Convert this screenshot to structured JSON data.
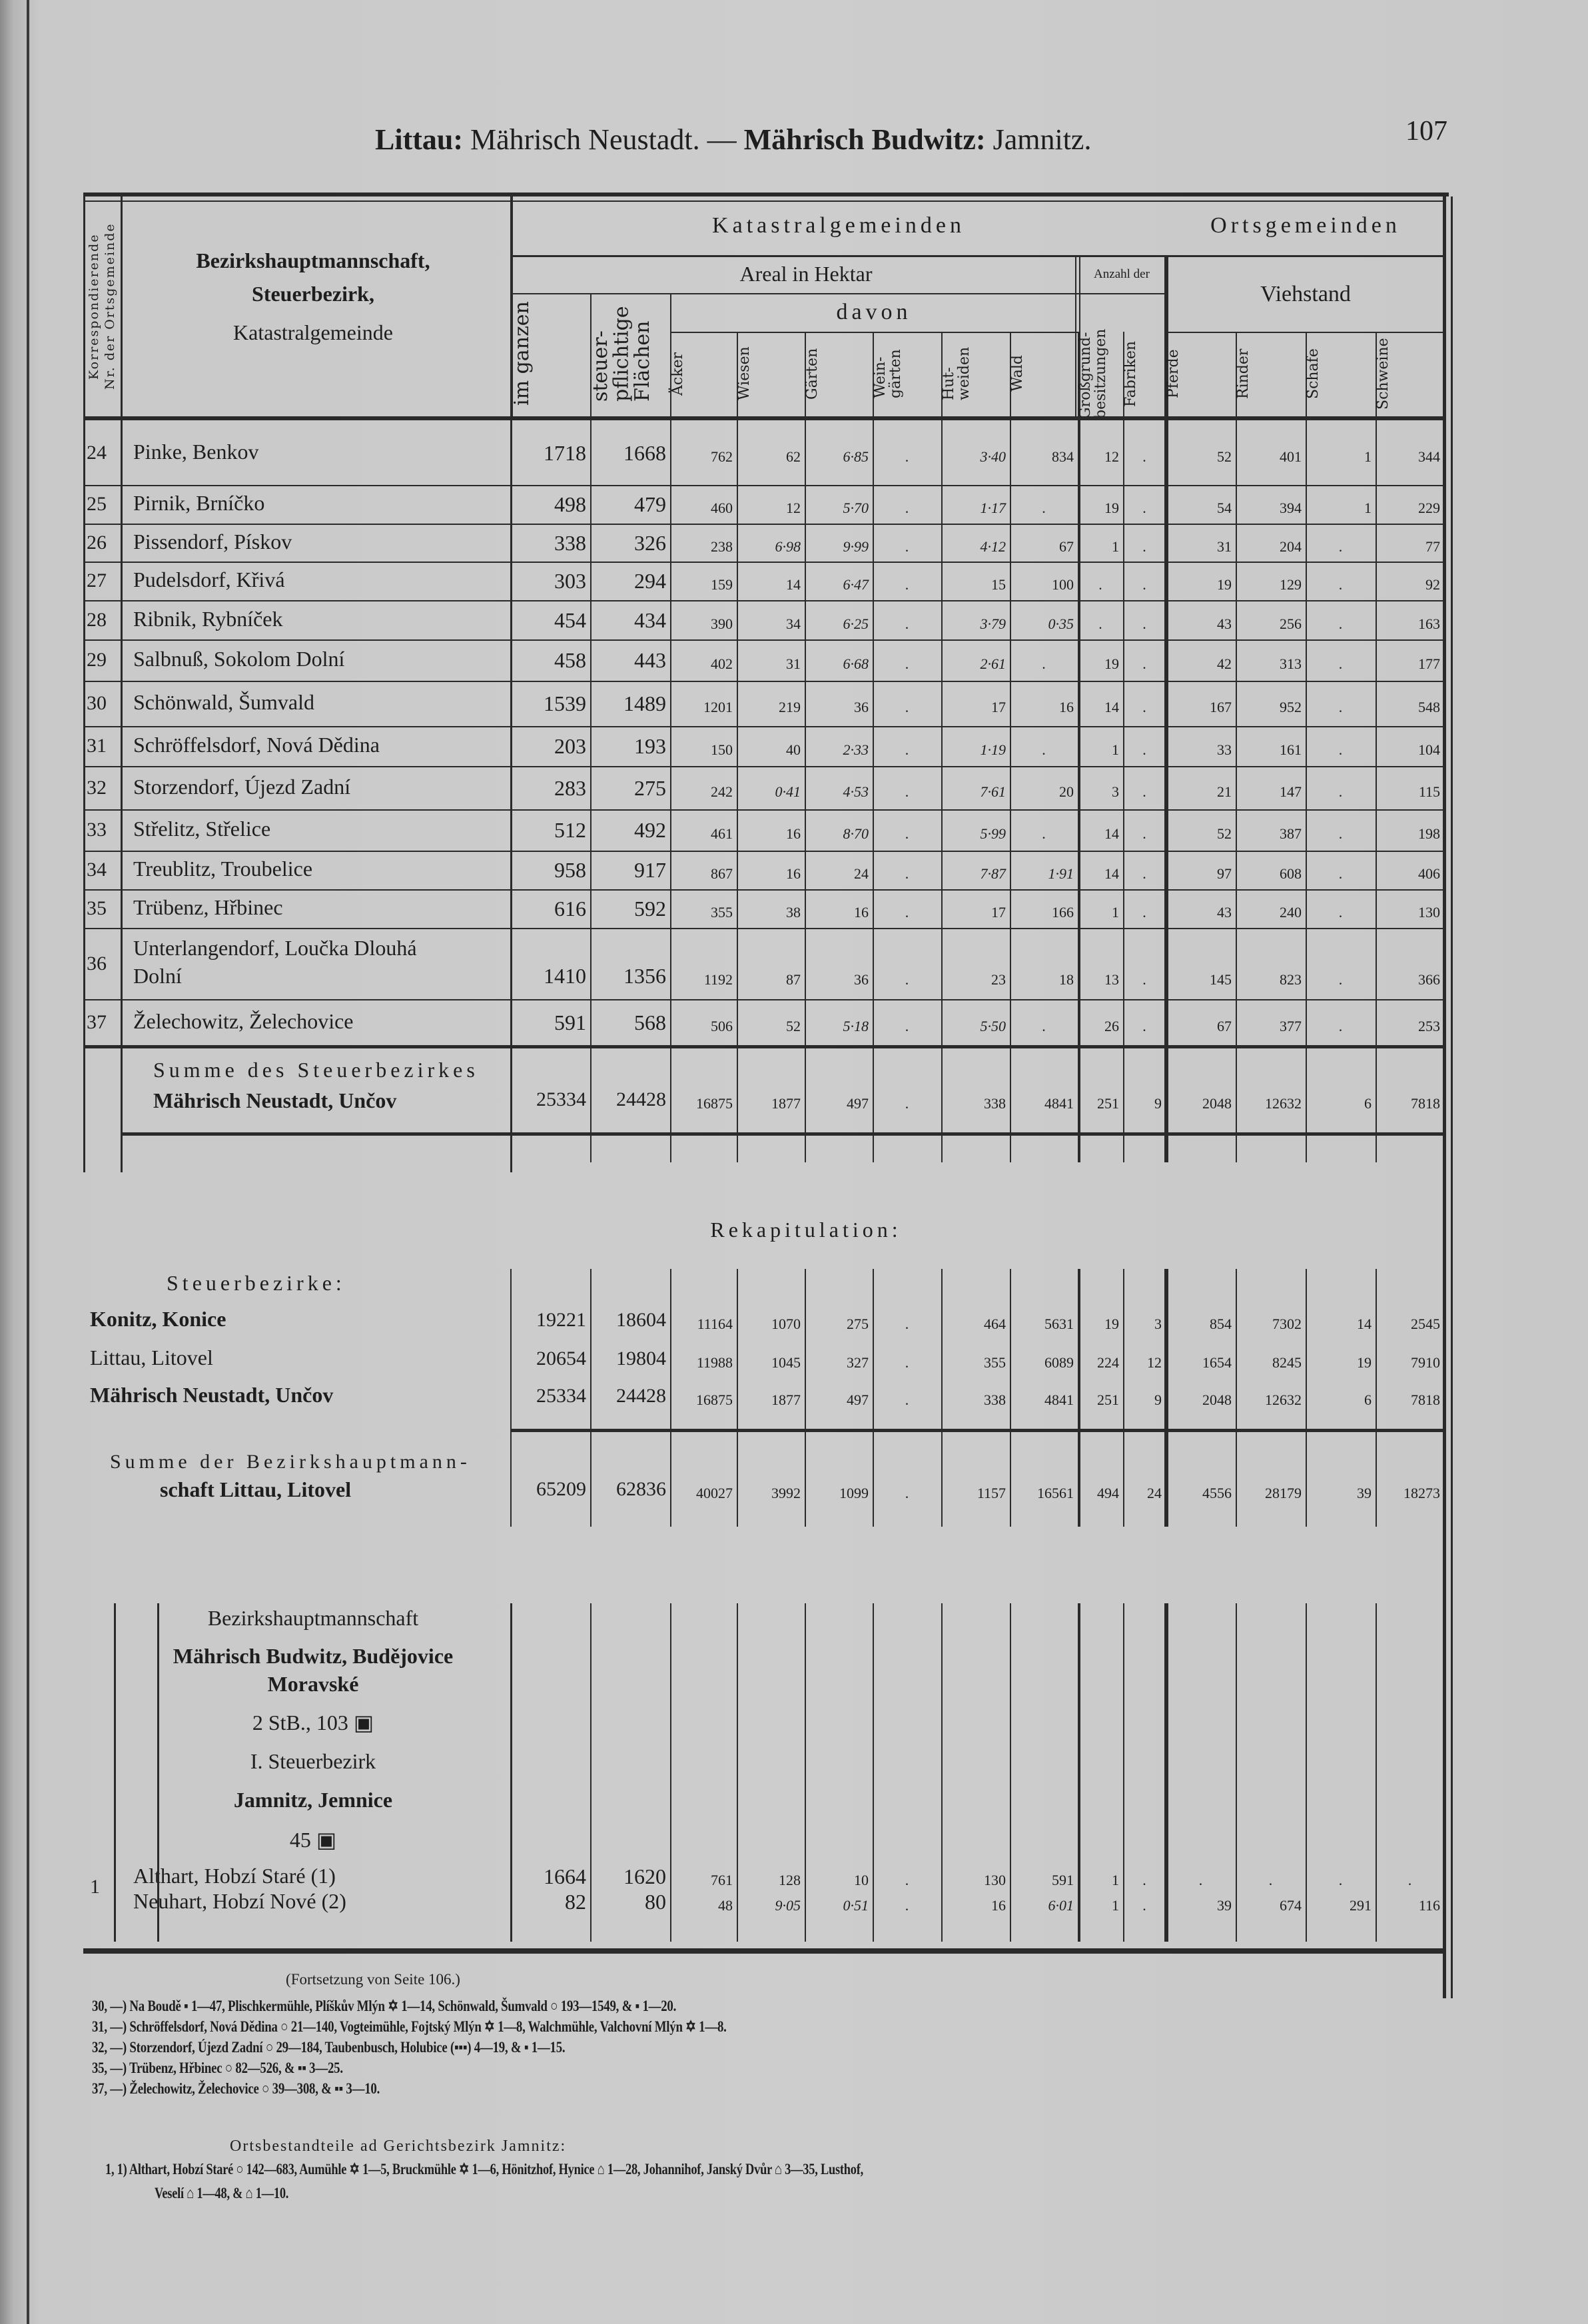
{
  "page": {
    "title_parts": [
      "Littau:",
      " Mährisch Neustadt. — ",
      "Mährisch Budwitz:",
      " Jamnitz."
    ],
    "page_number": "107"
  },
  "header": {
    "nr_label": [
      "Korrespondierende",
      "Nr. der Ortsgemeinde"
    ],
    "name_label": [
      "Bezirkshauptmannschaft,",
      "Steuerbezirk,",
      "Katastralgemeinde"
    ],
    "katastral": "Katastralgemeinden",
    "areal": "Areal in Hektar",
    "davon": "davon",
    "anzahl": "Anzahl der",
    "orts": "Ortsgemeinden",
    "viehstand": "Viehstand",
    "columns": [
      "im ganzen",
      "steuer-\npflichtige\nFlächen",
      "Äcker",
      "Wiesen",
      "Gärten",
      "Wein-\ngärten",
      "Hut-\nweiden",
      "Wald",
      "Großgrund-\nbesitzungen",
      "Fabriken",
      "Pferde",
      "Rinder",
      "Schafe",
      "Schweine"
    ]
  },
  "rows": [
    {
      "nr": "24",
      "name": "Pinke, Benkov",
      "values": [
        "1718",
        "1668",
        "762",
        "62",
        "6·85",
        ".",
        "3·40",
        "834",
        "12",
        ".",
        "52",
        "401",
        "1",
        "344"
      ]
    },
    {
      "nr": "25",
      "name": "Pirnik, Brníčko",
      "values": [
        "498",
        "479",
        "460",
        "12",
        "5·70",
        ".",
        "1·17",
        ".",
        "19",
        ".",
        "54",
        "394",
        "1",
        "229"
      ]
    },
    {
      "nr": "26",
      "name": "Pissendorf, Pískov",
      "values": [
        "338",
        "326",
        "238",
        "6·98",
        "9·99",
        ".",
        "4·12",
        "67",
        "1",
        ".",
        "31",
        "204",
        ".",
        "77"
      ]
    },
    {
      "nr": "27",
      "name": "Pudelsdorf, Křivá",
      "values": [
        "303",
        "294",
        "159",
        "14",
        "6·47",
        ".",
        "15",
        "100",
        ".",
        ".",
        "19",
        "129",
        ".",
        "92"
      ]
    },
    {
      "nr": "28",
      "name": "Ribnik, Rybníček",
      "values": [
        "454",
        "434",
        "390",
        "34",
        "6·25",
        ".",
        "3·79",
        "0·35",
        ".",
        ".",
        "43",
        "256",
        ".",
        "163"
      ]
    },
    {
      "nr": "29",
      "name": "Salbnuß, Sokolom Dolní",
      "values": [
        "458",
        "443",
        "402",
        "31",
        "6·68",
        ".",
        "2·61",
        ".",
        "19",
        ".",
        "42",
        "313",
        ".",
        "177"
      ]
    },
    {
      "nr": "30",
      "name": "Schönwald, Šumvald",
      "values": [
        "1539",
        "1489",
        "1201",
        "219",
        "36",
        ".",
        "17",
        "16",
        "14",
        ".",
        "167",
        "952",
        ".",
        "548"
      ]
    },
    {
      "nr": "31",
      "name": "Schröffelsdorf, Nová Dědina",
      "values": [
        "203",
        "193",
        "150",
        "40",
        "2·33",
        ".",
        "1·19",
        ".",
        "1",
        ".",
        "33",
        "161",
        ".",
        "104"
      ]
    },
    {
      "nr": "32",
      "name": "Storzendorf, Újezd Zadní",
      "values": [
        "283",
        "275",
        "242",
        "0·41",
        "4·53",
        ".",
        "7·61",
        "20",
        "3",
        ".",
        "21",
        "147",
        ".",
        "115"
      ]
    },
    {
      "nr": "33",
      "name": "Střelitz, Střelice",
      "values": [
        "512",
        "492",
        "461",
        "16",
        "8·70",
        ".",
        "5·99",
        ".",
        "14",
        ".",
        "52",
        "387",
        ".",
        "198"
      ]
    },
    {
      "nr": "34",
      "name": "Treublitz, Troubelice",
      "values": [
        "958",
        "917",
        "867",
        "16",
        "24",
        ".",
        "7·87",
        "1·91",
        "14",
        ".",
        "97",
        "608",
        ".",
        "406"
      ]
    },
    {
      "nr": "35",
      "name": "Trübenz, Hřbinec",
      "values": [
        "616",
        "592",
        "355",
        "38",
        "16",
        ".",
        "17",
        "166",
        "1",
        ".",
        "43",
        "240",
        ".",
        "130"
      ]
    },
    {
      "nr": "36",
      "name": "Unterlangendorf, Loučka Dlouhá",
      "name2": "Dolní",
      "values": [
        "1410",
        "1356",
        "1192",
        "87",
        "36",
        ".",
        "23",
        "18",
        "13",
        ".",
        "145",
        "823",
        ".",
        "366"
      ]
    },
    {
      "nr": "37",
      "name": "Želechowitz, Želechovice",
      "values": [
        "591",
        "568",
        "506",
        "52",
        "5·18",
        ".",
        "5·50",
        ".",
        "26",
        ".",
        "67",
        "377",
        ".",
        "253"
      ]
    }
  ],
  "sum_district": {
    "label1": "Summe des Steuerbezirkes",
    "label2": "Mährisch Neustadt, Unčov",
    "values": [
      "25334",
      "24428",
      "16875",
      "1877",
      "497",
      ".",
      "338",
      "4841",
      "251",
      "9",
      "2048",
      "12632",
      "6",
      "7818"
    ]
  },
  "recap": {
    "title": "Rekapitulation:",
    "subtitle": "Steuerbezirke:",
    "rows": [
      {
        "name": "Konitz, Konice",
        "values": [
          "19221",
          "18604",
          "11164",
          "1070",
          "275",
          ".",
          "464",
          "5631",
          "19",
          "3",
          "854",
          "7302",
          "14",
          "2545"
        ]
      },
      {
        "name": "Littau, Litovel",
        "values": [
          "20654",
          "19804",
          "11988",
          "1045",
          "327",
          ".",
          "355",
          "6089",
          "224",
          "12",
          "1654",
          "8245",
          "19",
          "7910"
        ]
      },
      {
        "name": "Mährisch Neustadt, Unčov",
        "values": [
          "25334",
          "24428",
          "16875",
          "1877",
          "497",
          ".",
          "338",
          "4841",
          "251",
          "9",
          "2048",
          "12632",
          "6",
          "7818"
        ]
      }
    ],
    "sum": {
      "label1": "Summe der Bezirkshauptmann-",
      "label2": "schaft Littau, Litovel",
      "values": [
        "65209",
        "62836",
        "40027",
        "3992",
        "1099",
        ".",
        "1157",
        "16561",
        "494",
        "24",
        "4556",
        "28179",
        "39",
        "18273"
      ]
    }
  },
  "budwitz": {
    "lines": [
      "Bezirkshauptmannschaft",
      "Mährisch Budwitz, Budějovice",
      "Moravské",
      "2 StB., 103 ▣",
      "I. Steuerbezirk",
      "Jamnitz, Jemnice",
      "45 ▣"
    ],
    "nr": "1",
    "rows": [
      {
        "name": "Althart, Hobzí Staré (1)",
        "values": [
          "1664",
          "1620",
          "761",
          "128",
          "10",
          ".",
          "130",
          "591",
          "1",
          ".",
          ".",
          ".",
          ".",
          "."
        ]
      },
      {
        "name": "Neuhart, Hobzí Nové (2)",
        "values": [
          "82",
          "80",
          "48",
          "9·05",
          "0·51",
          ".",
          "16",
          "6·01",
          "1",
          ".",
          "39",
          "674",
          "291",
          "116"
        ]
      }
    ]
  },
  "footnotes": {
    "continuation": "(Fortsetzung von Seite 106.)",
    "lines": [
      "30, —) Na Boudě ▪ 1—47, Plischkermühle, Plíškův Mlýn ✡ 1—14, Schönwald, Šumvald ○ 193—1549, & ▪ 1—20.",
      "31, —) Schröffelsdorf, Nová Dědina ○ 21—140, Vogteimühle, Fojtský Mlýn ✡ 1—8, Walchmühle, Valchovní Mlýn ✡ 1—8.",
      "32, —) Storzendorf, Újezd Zadní ○ 29—184, Taubenbusch, Holubice (▪▪▪) 4—19, & ▪ 1—15.",
      "35, —) Trübenz, Hřbinec ○ 82—526, & ▪▪ 3—25.",
      "37, —) Želechowitz, Želechovice ○ 39—308, & ▪▪ 3—10."
    ],
    "ortsbestandteile_title": "Ortsbestandteile ad Gerichtsbezirk Jamnitz:",
    "ortsbestandteile": [
      "1,  1) Althart, Hobzí Staré ○ 142—683, Aumühle ✡ 1—5, Bruckmühle ✡ 1—6, Hönitzhof, Hynice ⌂ 1—28, Johannihof, Janský Dvůr ⌂ 3—35, Lusthof,",
      "Veselí ⌂ 1—48, & ⌂ 1—10."
    ]
  }
}
